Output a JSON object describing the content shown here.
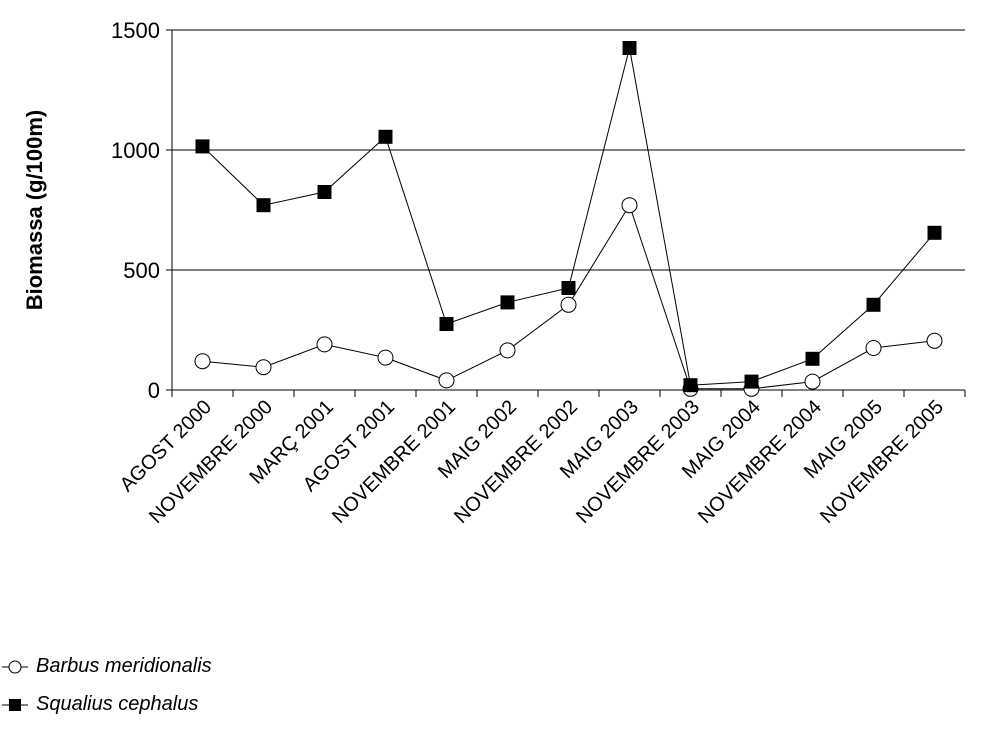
{
  "chart_data": {
    "type": "line",
    "ylabel": "Biomassa (g/100m)",
    "xlabel": "",
    "ylim": [
      0,
      1500
    ],
    "yticks": [
      0,
      500,
      1000,
      1500
    ],
    "grid": true,
    "legend_position": "bottom-left",
    "categories": [
      "AGOST 2000",
      "NOVEMBRE 2000",
      "MARÇ 2001",
      "AGOST 2001",
      "NOVEMBRE 2001",
      "MAIG 2002",
      "NOVEMBRE 2002",
      "MAIG 2003",
      "NOVEMBRE 2003",
      "MAIG 2004",
      "NOVEMBRE 2004",
      "MAIG 2005",
      "NOVEMBRE 2005"
    ],
    "series": [
      {
        "name": "Barbus meridionalis",
        "marker": "open-circle",
        "values": [
          120,
          95,
          190,
          135,
          40,
          165,
          355,
          770,
          5,
          5,
          35,
          175,
          205
        ]
      },
      {
        "name": "Squalius cephalus",
        "marker": "filled-square",
        "values": [
          1015,
          770,
          825,
          1055,
          275,
          365,
          425,
          1425,
          20,
          35,
          130,
          355,
          655
        ]
      }
    ]
  }
}
